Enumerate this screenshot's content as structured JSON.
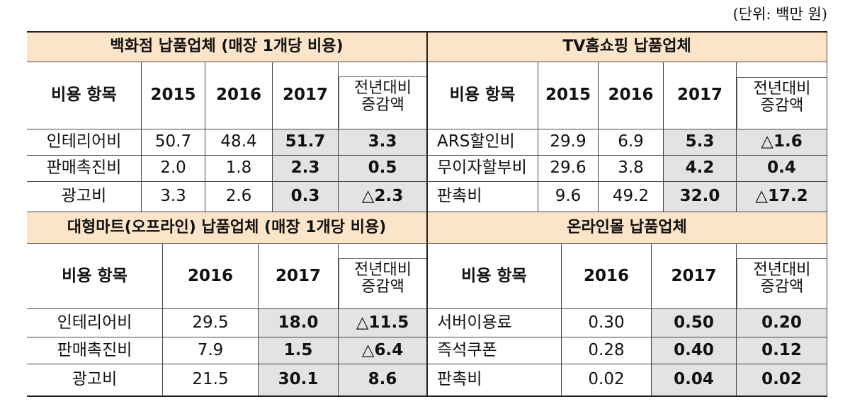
{
  "unit": "(단위: 백만 원)",
  "tables": [
    {
      "title": "백화점 납품업체 (매장 1개당 비용)",
      "columns": [
        "비용 항목",
        "2015",
        "2016",
        "2017",
        "전년대비 증감액"
      ],
      "rows": [
        [
          "인테리어비",
          "50.7",
          "48.4",
          "51.7",
          "3.3"
        ],
        [
          "판매촉진비",
          "2.0",
          "1.8",
          "2.3",
          "0.5"
        ],
        [
          "광고비",
          "3.3",
          "2.6",
          "0.3",
          "△2.3"
        ]
      ]
    },
    {
      "title": "TV홈쇼핑 납품업체",
      "columns": [
        "비용 항목",
        "2015",
        "2016",
        "2017",
        "전년대비 증감액"
      ],
      "rows": [
        [
          "ARS할인비",
          "29.9",
          "6.9",
          "5.3",
          "△1.6"
        ],
        [
          "무이자할부비",
          "29.6",
          "3.8",
          "4.2",
          "0.4"
        ],
        [
          "판촉비",
          "9.6",
          "49.2",
          "32.0",
          "△17.2"
        ]
      ]
    },
    {
      "title": "대형마트(오프라인) 납품업체 (매장 1개당 비용)",
      "columns": [
        "비용 항목",
        "2016",
        "2017",
        "전년대비 증감액"
      ],
      "rows": [
        [
          "인테리어비",
          "29.5",
          "18.0",
          "△11.5"
        ],
        [
          "판매촉진비",
          "7.9",
          "1.5",
          "△6.4"
        ],
        [
          "광고비",
          "21.5",
          "30.1",
          "8.6"
        ]
      ]
    },
    {
      "title": "온라인몰 납품업체",
      "columns": [
        "비용 항목",
        "2016",
        "2017",
        "전년대비 증감액"
      ],
      "rows": [
        [
          "서버이용료",
          "0.30",
          "0.50",
          "0.20"
        ],
        [
          "즉석쿠폰",
          "0.28",
          "0.40",
          "0.12"
        ],
        [
          "판촉비",
          "0.02",
          "0.04",
          "0.02"
        ]
      ]
    }
  ]
}
